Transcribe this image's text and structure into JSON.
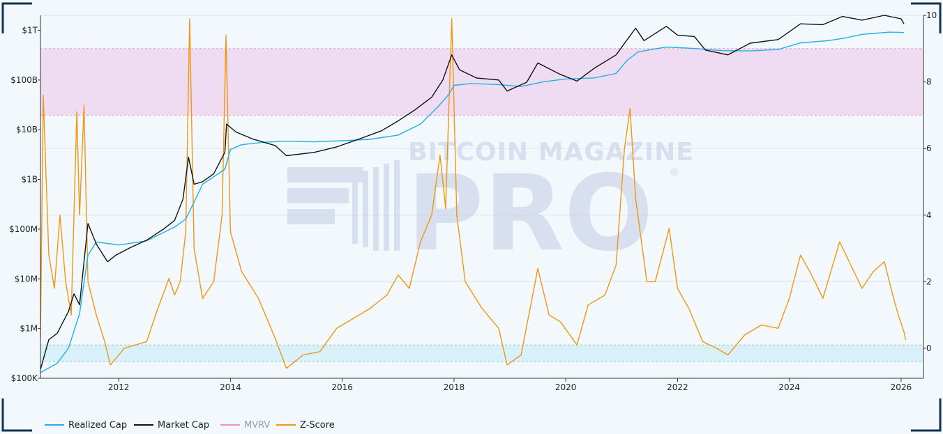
{
  "chart_data": {
    "type": "line",
    "watermark": {
      "line1": "BITCOIN MAGAZINE",
      "line2": "PRO",
      "mark": "®"
    },
    "x_axis": {
      "range": [
        2010.6,
        2026.4
      ],
      "ticks": [
        {
          "value": 2012,
          "label": "2012"
        },
        {
          "value": 2014,
          "label": "2014"
        },
        {
          "value": 2016,
          "label": "2016"
        },
        {
          "value": 2018,
          "label": "2018"
        },
        {
          "value": 2020,
          "label": "2020"
        },
        {
          "value": 2022,
          "label": "2022"
        },
        {
          "value": 2024,
          "label": "2024"
        },
        {
          "value": 2026,
          "label": "2026"
        }
      ]
    },
    "y_left": {
      "scale": "log",
      "range": [
        100000,
        2000000000000
      ],
      "ticks": [
        {
          "value": 100000,
          "label": "$100K"
        },
        {
          "value": 1000000,
          "label": "$1M"
        },
        {
          "value": 10000000,
          "label": "$10M"
        },
        {
          "value": 100000000,
          "label": "$100M"
        },
        {
          "value": 1000000000,
          "label": "$1B"
        },
        {
          "value": 10000000000,
          "label": "$10B"
        },
        {
          "value": 100000000000,
          "label": "$100B"
        },
        {
          "value": 1000000000000,
          "label": "$1T"
        }
      ]
    },
    "y_right": {
      "scale": "linear",
      "range": [
        -0.9,
        10
      ],
      "ticks": [
        {
          "value": 0,
          "label": "0"
        },
        {
          "value": 2,
          "label": "2"
        },
        {
          "value": 4,
          "label": "4"
        },
        {
          "value": 6,
          "label": "6"
        },
        {
          "value": 8,
          "label": "8"
        },
        {
          "value": 10,
          "label": "10"
        }
      ]
    },
    "bands": [
      {
        "name": "high-zone",
        "from": 7,
        "to": 9,
        "color": "#f0dcf2",
        "line_color": "#e8a0b8"
      },
      {
        "name": "low-zone",
        "from": -0.4,
        "to": 0.1,
        "color": "#d9f1fb",
        "line_color": "#88d0d0"
      }
    ],
    "series": [
      {
        "name": "Realized Cap",
        "color": "#1fb0e6",
        "axis": "left",
        "points": [
          [
            2010.6,
            130000
          ],
          [
            2010.9,
            200000
          ],
          [
            2011.1,
            400000
          ],
          [
            2011.3,
            2000000
          ],
          [
            2011.45,
            30000000
          ],
          [
            2011.6,
            55000000
          ],
          [
            2012.0,
            48000000
          ],
          [
            2012.5,
            58000000
          ],
          [
            2013.0,
            110000000
          ],
          [
            2013.2,
            160000000
          ],
          [
            2013.35,
            350000000
          ],
          [
            2013.5,
            800000000
          ],
          [
            2013.9,
            1600000000
          ],
          [
            2014.0,
            4000000000
          ],
          [
            2014.2,
            5000000000
          ],
          [
            2014.6,
            5600000000
          ],
          [
            2015.0,
            5900000000
          ],
          [
            2015.5,
            5700000000
          ],
          [
            2016.0,
            6000000000
          ],
          [
            2016.5,
            6400000000
          ],
          [
            2017.0,
            7800000000
          ],
          [
            2017.4,
            13000000000
          ],
          [
            2017.7,
            28000000000
          ],
          [
            2017.9,
            50000000000
          ],
          [
            2018.0,
            78000000000
          ],
          [
            2018.3,
            85000000000
          ],
          [
            2018.8,
            81000000000
          ],
          [
            2019.2,
            74000000000
          ],
          [
            2019.6,
            92000000000
          ],
          [
            2020.0,
            105000000000
          ],
          [
            2020.5,
            110000000000
          ],
          [
            2020.9,
            135000000000
          ],
          [
            2021.1,
            250000000000
          ],
          [
            2021.3,
            370000000000
          ],
          [
            2021.8,
            460000000000
          ],
          [
            2022.3,
            430000000000
          ],
          [
            2022.8,
            390000000000
          ],
          [
            2023.3,
            385000000000
          ],
          [
            2023.8,
            410000000000
          ],
          [
            2024.2,
            560000000000
          ],
          [
            2024.7,
            620000000000
          ],
          [
            2025.0,
            700000000000
          ],
          [
            2025.3,
            830000000000
          ],
          [
            2025.8,
            920000000000
          ],
          [
            2026.05,
            900000000000
          ]
        ]
      },
      {
        "name": "Market Cap",
        "color": "#111111",
        "axis": "left",
        "points": [
          [
            2010.6,
            150000
          ],
          [
            2010.75,
            600000
          ],
          [
            2010.9,
            800000
          ],
          [
            2011.1,
            2200000
          ],
          [
            2011.2,
            5000000
          ],
          [
            2011.3,
            3000000
          ],
          [
            2011.45,
            130000000
          ],
          [
            2011.6,
            50000000
          ],
          [
            2011.8,
            22000000
          ],
          [
            2011.95,
            30000000
          ],
          [
            2012.2,
            42000000
          ],
          [
            2012.5,
            60000000
          ],
          [
            2012.8,
            100000000
          ],
          [
            2013.0,
            150000000
          ],
          [
            2013.15,
            400000000
          ],
          [
            2013.25,
            2800000000
          ],
          [
            2013.35,
            800000000
          ],
          [
            2013.5,
            900000000
          ],
          [
            2013.7,
            1300000000
          ],
          [
            2013.9,
            3500000000
          ],
          [
            2013.93,
            13000000000
          ],
          [
            2014.1,
            9000000000
          ],
          [
            2014.4,
            6500000000
          ],
          [
            2014.8,
            4800000000
          ],
          [
            2015.0,
            3000000000
          ],
          [
            2015.5,
            3500000000
          ],
          [
            2015.9,
            4500000000
          ],
          [
            2016.3,
            6500000000
          ],
          [
            2016.7,
            9500000000
          ],
          [
            2017.0,
            15000000000
          ],
          [
            2017.3,
            25000000000
          ],
          [
            2017.6,
            45000000000
          ],
          [
            2017.8,
            100000000000
          ],
          [
            2017.96,
            320000000000
          ],
          [
            2018.1,
            160000000000
          ],
          [
            2018.4,
            110000000000
          ],
          [
            2018.8,
            100000000000
          ],
          [
            2018.95,
            60000000000
          ],
          [
            2019.3,
            90000000000
          ],
          [
            2019.5,
            220000000000
          ],
          [
            2019.9,
            130000000000
          ],
          [
            2020.2,
            95000000000
          ],
          [
            2020.5,
            170000000000
          ],
          [
            2020.9,
            320000000000
          ],
          [
            2021.1,
            650000000000
          ],
          [
            2021.25,
            1100000000000
          ],
          [
            2021.4,
            620000000000
          ],
          [
            2021.8,
            1200000000000
          ],
          [
            2022.0,
            800000000000
          ],
          [
            2022.3,
            750000000000
          ],
          [
            2022.5,
            400000000000
          ],
          [
            2022.9,
            320000000000
          ],
          [
            2023.3,
            550000000000
          ],
          [
            2023.8,
            650000000000
          ],
          [
            2024.2,
            1350000000000
          ],
          [
            2024.6,
            1300000000000
          ],
          [
            2024.95,
            1900000000000
          ],
          [
            2025.3,
            1600000000000
          ],
          [
            2025.7,
            2000000000000
          ],
          [
            2026.0,
            1700000000000
          ],
          [
            2026.05,
            1350000000000
          ]
        ]
      },
      {
        "name": "MVRV",
        "color": "#e89ab4",
        "axis": "right",
        "points": []
      },
      {
        "name": "Z-Score",
        "color": "#f0960f",
        "axis": "right",
        "points": [
          [
            2010.6,
            0.3
          ],
          [
            2010.65,
            7.6
          ],
          [
            2010.75,
            2.8
          ],
          [
            2010.85,
            1.8
          ],
          [
            2010.95,
            4.0
          ],
          [
            2011.05,
            2.0
          ],
          [
            2011.15,
            1.0
          ],
          [
            2011.25,
            7.1
          ],
          [
            2011.3,
            4.0
          ],
          [
            2011.38,
            7.3
          ],
          [
            2011.45,
            2.0
          ],
          [
            2011.6,
            1.0
          ],
          [
            2011.75,
            0.2
          ],
          [
            2011.85,
            -0.5
          ],
          [
            2011.95,
            -0.3
          ],
          [
            2012.1,
            0.0
          ],
          [
            2012.3,
            0.1
          ],
          [
            2012.5,
            0.2
          ],
          [
            2012.7,
            1.2
          ],
          [
            2012.9,
            2.1
          ],
          [
            2013.0,
            1.6
          ],
          [
            2013.1,
            2.0
          ],
          [
            2013.2,
            3.5
          ],
          [
            2013.27,
            9.9
          ],
          [
            2013.35,
            3.0
          ],
          [
            2013.5,
            1.5
          ],
          [
            2013.7,
            2.0
          ],
          [
            2013.85,
            4.0
          ],
          [
            2013.92,
            9.4
          ],
          [
            2014.0,
            3.5
          ],
          [
            2014.2,
            2.3
          ],
          [
            2014.5,
            1.5
          ],
          [
            2014.8,
            0.3
          ],
          [
            2015.0,
            -0.6
          ],
          [
            2015.3,
            -0.2
          ],
          [
            2015.6,
            -0.1
          ],
          [
            2015.9,
            0.6
          ],
          [
            2016.2,
            0.9
          ],
          [
            2016.5,
            1.2
          ],
          [
            2016.8,
            1.6
          ],
          [
            2017.0,
            2.2
          ],
          [
            2017.2,
            1.8
          ],
          [
            2017.4,
            3.2
          ],
          [
            2017.6,
            4.0
          ],
          [
            2017.75,
            5.8
          ],
          [
            2017.85,
            4.2
          ],
          [
            2017.96,
            9.9
          ],
          [
            2018.05,
            4.0
          ],
          [
            2018.2,
            2.0
          ],
          [
            2018.5,
            1.2
          ],
          [
            2018.8,
            0.6
          ],
          [
            2018.95,
            -0.5
          ],
          [
            2019.2,
            -0.2
          ],
          [
            2019.5,
            2.4
          ],
          [
            2019.7,
            1.0
          ],
          [
            2019.9,
            0.8
          ],
          [
            2020.2,
            0.1
          ],
          [
            2020.4,
            1.3
          ],
          [
            2020.7,
            1.6
          ],
          [
            2020.9,
            2.5
          ],
          [
            2021.05,
            6.0
          ],
          [
            2021.15,
            7.2
          ],
          [
            2021.25,
            4.5
          ],
          [
            2021.45,
            2.0
          ],
          [
            2021.6,
            2.0
          ],
          [
            2021.85,
            3.6
          ],
          [
            2022.0,
            1.8
          ],
          [
            2022.2,
            1.2
          ],
          [
            2022.45,
            0.2
          ],
          [
            2022.7,
            0.0
          ],
          [
            2022.9,
            -0.2
          ],
          [
            2023.2,
            0.4
          ],
          [
            2023.5,
            0.7
          ],
          [
            2023.8,
            0.6
          ],
          [
            2024.0,
            1.5
          ],
          [
            2024.2,
            2.8
          ],
          [
            2024.4,
            2.2
          ],
          [
            2024.6,
            1.5
          ],
          [
            2024.9,
            3.2
          ],
          [
            2025.1,
            2.5
          ],
          [
            2025.3,
            1.8
          ],
          [
            2025.5,
            2.3
          ],
          [
            2025.7,
            2.6
          ],
          [
            2025.85,
            1.6
          ],
          [
            2025.95,
            1.0
          ],
          [
            2026.05,
            0.5
          ],
          [
            2026.08,
            0.25
          ]
        ]
      }
    ]
  },
  "legend": [
    {
      "label": "Realized Cap",
      "color": "#1fb0e6",
      "muted": false
    },
    {
      "label": "Market Cap",
      "color": "#111111",
      "muted": false
    },
    {
      "label": "MVRV",
      "color": "#e89ab4",
      "muted": true
    },
    {
      "label": "Z-Score",
      "color": "#f0960f",
      "muted": false
    }
  ]
}
